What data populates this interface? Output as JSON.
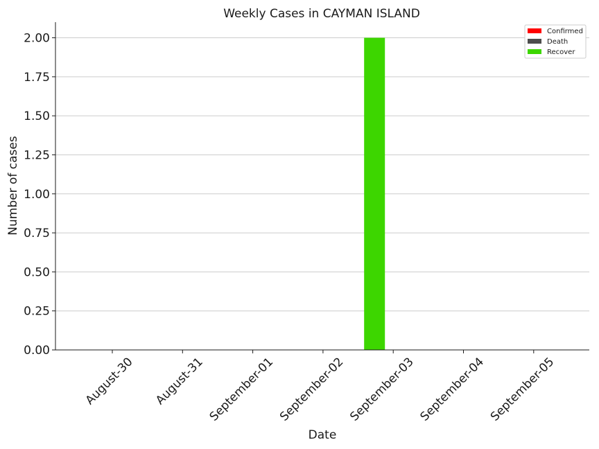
{
  "chart_data": {
    "type": "bar",
    "title": "Weekly Cases in CAYMAN ISLAND",
    "xlabel": "Date",
    "ylabel": "Number of cases",
    "categories": [
      "August-30",
      "August-31",
      "September-01",
      "September-02",
      "September-03",
      "September-04",
      "September-05"
    ],
    "series": [
      {
        "name": "Confirmed",
        "color": "#ff0000",
        "values": [
          0,
          0,
          0,
          0,
          0,
          0,
          0
        ]
      },
      {
        "name": "Death",
        "color": "#4d4d4d",
        "values": [
          0,
          0,
          0,
          0,
          0,
          0,
          0
        ]
      },
      {
        "name": "Recover",
        "color": "#3dd600",
        "values": [
          0,
          0,
          0,
          0,
          2,
          0,
          0
        ]
      }
    ],
    "ylim": [
      0,
      2.1
    ],
    "yticks": [
      "0.00",
      "0.25",
      "0.50",
      "0.75",
      "1.00",
      "1.25",
      "1.50",
      "1.75",
      "2.00"
    ],
    "grid": "horizontal",
    "legend_position": "top-right"
  }
}
